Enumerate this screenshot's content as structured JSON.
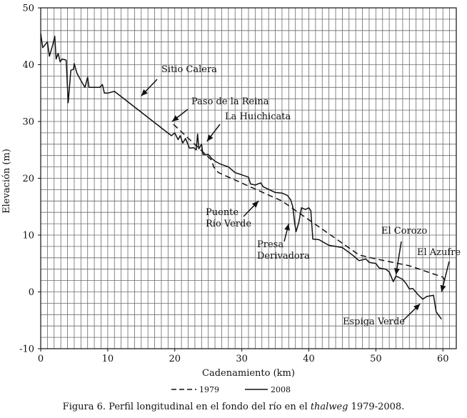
{
  "chart_data": {
    "type": "line",
    "title": "",
    "xlabel": "Cadenamiento (km)",
    "ylabel": "Elevación (m)",
    "xlim": [
      0,
      62
    ],
    "ylim": [
      -10,
      50
    ],
    "x_ticks": [
      0,
      10,
      20,
      30,
      40,
      50,
      60
    ],
    "y_ticks": [
      -10,
      0,
      10,
      20,
      30,
      40,
      50
    ],
    "grid": true,
    "legend_position": "bottom",
    "series": [
      {
        "name": "1979",
        "style": "dashed",
        "color": "#111111",
        "points": [
          [
            19.8,
            29.5
          ],
          [
            25.5,
            23.2
          ],
          [
            25.8,
            22.0
          ],
          [
            26.5,
            21.0
          ],
          [
            36.0,
            16.0
          ],
          [
            47.5,
            6.5
          ],
          [
            50.0,
            5.8
          ],
          [
            55.0,
            4.6
          ],
          [
            60.0,
            2.6
          ],
          [
            60.5,
            1.5
          ]
        ]
      },
      {
        "name": "2008",
        "style": "solid",
        "color": "#111111",
        "points": [
          [
            0.0,
            45.5
          ],
          [
            0.3,
            43.0
          ],
          [
            1.0,
            44.0
          ],
          [
            1.3,
            41.5
          ],
          [
            1.8,
            43.5
          ],
          [
            2.0,
            44.5
          ],
          [
            2.1,
            45.0
          ],
          [
            2.3,
            41.0
          ],
          [
            2.6,
            42.0
          ],
          [
            2.9,
            40.5
          ],
          [
            3.2,
            41.0
          ],
          [
            3.8,
            40.8
          ],
          [
            4.1,
            33.3
          ],
          [
            4.5,
            39.0
          ],
          [
            4.9,
            39.2
          ],
          [
            5.0,
            40.2
          ],
          [
            5.4,
            38.5
          ],
          [
            6.0,
            37.2
          ],
          [
            6.6,
            36.0
          ],
          [
            7.0,
            37.8
          ],
          [
            7.2,
            36.0
          ],
          [
            8.0,
            36.0
          ],
          [
            8.8,
            36.0
          ],
          [
            9.2,
            36.5
          ],
          [
            9.5,
            35.0
          ],
          [
            10.0,
            35.0
          ],
          [
            11.0,
            35.3
          ],
          [
            19.5,
            27.5
          ],
          [
            20.0,
            28.0
          ],
          [
            20.5,
            26.8
          ],
          [
            20.8,
            27.5
          ],
          [
            21.2,
            26.2
          ],
          [
            21.6,
            27.0
          ],
          [
            22.2,
            25.3
          ],
          [
            22.8,
            25.4
          ],
          [
            23.2,
            25.0
          ],
          [
            23.4,
            27.8
          ],
          [
            23.6,
            25.2
          ],
          [
            24.0,
            26.0
          ],
          [
            24.2,
            24.2
          ],
          [
            25.0,
            24.2
          ],
          [
            25.5,
            23.5
          ],
          [
            26.0,
            23.0
          ],
          [
            26.8,
            22.5
          ],
          [
            28.0,
            22.0
          ],
          [
            29.0,
            21.0
          ],
          [
            30.0,
            20.6
          ],
          [
            31.0,
            20.2
          ],
          [
            31.3,
            19.0
          ],
          [
            32.0,
            18.8
          ],
          [
            32.8,
            19.2
          ],
          [
            33.2,
            18.5
          ],
          [
            35.0,
            17.5
          ],
          [
            36.0,
            17.4
          ],
          [
            36.8,
            17.0
          ],
          [
            37.3,
            16.2
          ],
          [
            37.6,
            15.0
          ],
          [
            37.9,
            12.0
          ],
          [
            38.1,
            10.6
          ],
          [
            38.5,
            12.2
          ],
          [
            38.9,
            14.8
          ],
          [
            39.5,
            14.5
          ],
          [
            40.0,
            14.8
          ],
          [
            40.3,
            14.3
          ],
          [
            40.6,
            9.3
          ],
          [
            41.5,
            9.2
          ],
          [
            43.0,
            8.2
          ],
          [
            45.0,
            7.8
          ],
          [
            46.5,
            6.5
          ],
          [
            47.5,
            5.5
          ],
          [
            48.5,
            5.8
          ],
          [
            49.0,
            5.2
          ],
          [
            50.0,
            5.0
          ],
          [
            50.5,
            4.2
          ],
          [
            51.5,
            4.0
          ],
          [
            52.0,
            3.5
          ],
          [
            52.6,
            1.8
          ],
          [
            53.0,
            2.8
          ],
          [
            54.0,
            2.2
          ],
          [
            54.5,
            1.5
          ],
          [
            55.0,
            0.5
          ],
          [
            55.5,
            0.6
          ],
          [
            56.3,
            -0.5
          ],
          [
            57.0,
            -1.3
          ],
          [
            57.6,
            -0.8
          ],
          [
            58.6,
            -0.6
          ],
          [
            59.0,
            -3.5
          ],
          [
            59.8,
            -4.8
          ]
        ]
      }
    ],
    "annotations": [
      {
        "id": "sitio-calera",
        "lines": [
          "Sitio Calera"
        ],
        "arrow_x": 15.0,
        "arrow_y": 34.5
      },
      {
        "id": "paso-de-la-reina",
        "lines": [
          "Paso de la Reina"
        ],
        "arrow_x": 19.6,
        "arrow_y": 30.0
      },
      {
        "id": "la-huichicata",
        "lines": [
          "La Huichicata"
        ],
        "arrow_x": 24.8,
        "arrow_y": 26.5
      },
      {
        "id": "puente-rio-verde",
        "lines": [
          "Puente",
          "Río Verde"
        ],
        "arrow_x": 32.5,
        "arrow_y": 16.0
      },
      {
        "id": "presa-derivadora",
        "lines": [
          "Presa",
          "Derivadora"
        ],
        "arrow_x": 37.0,
        "arrow_y": 12.0
      },
      {
        "id": "el-corozo",
        "lines": [
          "El Corozo"
        ],
        "arrow_x": 53.0,
        "arrow_y": 3.0
      },
      {
        "id": "el-azufre",
        "lines": [
          "El Azufre"
        ],
        "arrow_x": 59.8,
        "arrow_y": 0.0
      },
      {
        "id": "espiga-verde",
        "lines": [
          "Espiga Verde"
        ],
        "arrow_x": 56.6,
        "arrow_y": -2.1
      }
    ],
    "legend": [
      {
        "label": "1979",
        "style": "dashed"
      },
      {
        "label": "2008",
        "style": "solid"
      }
    ]
  },
  "caption": {
    "prefix": "Figura 6. Perfil longitudinal en el fondo del río en el ",
    "italic": "thalweg",
    "suffix": " 1979-2008."
  }
}
